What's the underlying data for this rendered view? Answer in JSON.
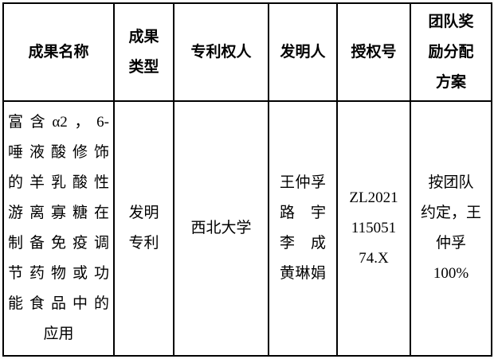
{
  "page": {
    "background_color": "#fdfdfd",
    "grid_color": "#000000",
    "text_color": "#000000"
  },
  "table": {
    "header": {
      "name": [
        "成果名称"
      ],
      "type": [
        "成果",
        "类型"
      ],
      "patentee": [
        "专利权人"
      ],
      "inventors": [
        "发明人"
      ],
      "grant_no": [
        "授权号"
      ],
      "reward": [
        "团队奖",
        "励分配",
        "方案"
      ]
    },
    "row": {
      "name": [
        "富含α2，6-",
        "唾液酸修饰",
        "的羊乳酸性",
        "游离寡糖在",
        "制备免疫调",
        "节药物或功",
        "能食品中的",
        "应用"
      ],
      "type": [
        "发明",
        "专利"
      ],
      "patentee": [
        "西北大学"
      ],
      "inventors": [
        "王仲孚",
        "路宇",
        "李成",
        "黄琳娟"
      ],
      "grant_no": [
        "ZL2021",
        "115051",
        "74.X"
      ],
      "reward": [
        "按团队",
        "约定，王",
        "仲孚",
        "100%"
      ]
    }
  }
}
